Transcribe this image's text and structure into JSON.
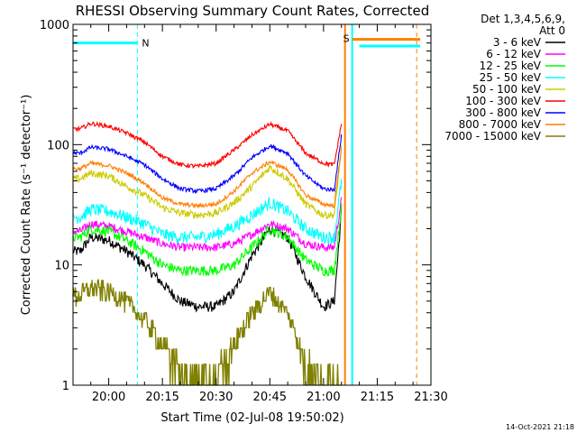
{
  "chart_data": {
    "type": "line",
    "title": "RHESSI Observing Summary Count Rates, Corrected",
    "xlabel": "Start Time (02-Jul-08 19:50:02)",
    "ylabel": "Corrected Count Rate (s⁻¹ detector⁻¹)",
    "x_ticks": [
      "20:00",
      "20:15",
      "20:30",
      "20:45",
      "21:00",
      "21:15",
      "21:30"
    ],
    "y_ticks": [
      "1",
      "10",
      "100",
      "1000"
    ],
    "ylim": [
      1,
      1000
    ],
    "yscale": "log",
    "legend_title": [
      "Det 1,3,4,5,6,9,",
      "Att 0"
    ],
    "legend_position": "right",
    "footer": "14-Oct-2021 21:18",
    "flags": [
      {
        "label": "N",
        "color": "#00ffff",
        "level": 700,
        "from": "19:50",
        "to": "20:08"
      },
      {
        "label": "S",
        "color": "#ff7f00",
        "level": 750,
        "from": "21:08",
        "to": "21:27"
      },
      {
        "label": "",
        "color": "#00ffff",
        "level": 660,
        "from": "21:10",
        "to": "21:27"
      }
    ],
    "markers": [
      {
        "color": "#00ffff",
        "style": "dashed",
        "time": "20:08"
      },
      {
        "color": "#ff7f00",
        "style": "solid",
        "time": "21:06"
      },
      {
        "color": "#00ffff",
        "style": "solid",
        "time": "21:08"
      },
      {
        "color": "#ff7f00",
        "style": "dashed",
        "time": "21:26"
      }
    ],
    "x_times": [
      "19:52",
      "19:55",
      "20:00",
      "20:05",
      "20:10",
      "20:15",
      "20:20",
      "20:25",
      "20:30",
      "20:35",
      "20:40",
      "20:45",
      "20:50",
      "20:55",
      "21:00",
      "21:03",
      "21:05"
    ],
    "series": [
      {
        "name": "3 - 6 keV",
        "color": "#000000",
        "noise": 0.1,
        "values": [
          13,
          17,
          16,
          13,
          10,
          7,
          5,
          4.5,
          4.5,
          6,
          12,
          20,
          17,
          8,
          4.5,
          5,
          28
        ]
      },
      {
        "name": "6 - 12 keV",
        "color": "#ff00ff",
        "noise": 0.08,
        "values": [
          19,
          22,
          21,
          19,
          17,
          15,
          14,
          14,
          14,
          15,
          18,
          22,
          20,
          15,
          14,
          14,
          35
        ]
      },
      {
        "name": "12 - 25 keV",
        "color": "#00ff00",
        "noise": 0.1,
        "values": [
          17,
          20,
          19,
          16,
          13,
          10,
          9,
          9,
          9,
          10,
          14,
          20,
          17,
          11,
          9,
          9,
          30
        ]
      },
      {
        "name": "25 - 50 keV",
        "color": "#00ffff",
        "noise": 0.12,
        "values": [
          25,
          29,
          28,
          25,
          22,
          18,
          17,
          17,
          18,
          21,
          26,
          33,
          28,
          20,
          17,
          17,
          50
        ]
      },
      {
        "name": "50 - 100 keV",
        "color": "#cccc00",
        "noise": 0.07,
        "values": [
          52,
          58,
          55,
          45,
          38,
          30,
          27,
          26,
          27,
          33,
          45,
          65,
          52,
          32,
          26,
          26,
          95
        ]
      },
      {
        "name": "100 - 300 keV",
        "color": "#ff0000",
        "noise": 0.04,
        "values": [
          135,
          150,
          142,
          125,
          105,
          80,
          68,
          66,
          70,
          90,
          120,
          148,
          130,
          85,
          70,
          68,
          150
        ]
      },
      {
        "name": "300 - 800 keV",
        "color": "#0000ff",
        "noise": 0.04,
        "values": [
          85,
          95,
          92,
          80,
          68,
          52,
          43,
          41,
          43,
          55,
          78,
          98,
          85,
          55,
          43,
          42,
          120
        ]
      },
      {
        "name": "800 - 7000 keV",
        "color": "#ff7f00",
        "noise": 0.04,
        "values": [
          63,
          70,
          67,
          58,
          48,
          36,
          32,
          31,
          32,
          41,
          58,
          72,
          62,
          38,
          32,
          31,
          95
        ]
      },
      {
        "name": "7000 - 15000 keV",
        "color": "#808000",
        "noise": 0.2,
        "values": [
          5.5,
          6.5,
          6,
          5,
          3.5,
          2.2,
          1.5,
          1.3,
          1.3,
          2.2,
          4,
          6,
          4,
          1.6,
          1.3,
          1.3,
          1
        ]
      }
    ]
  }
}
